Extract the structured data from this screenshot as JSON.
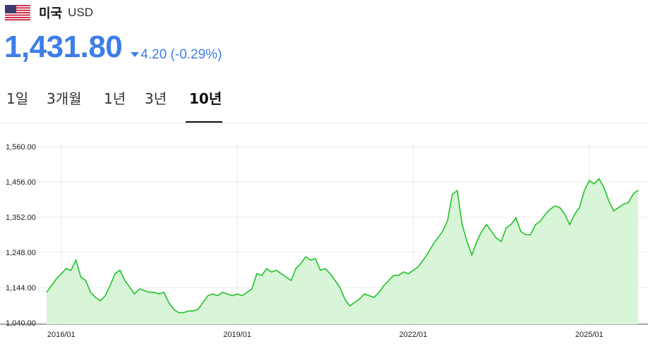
{
  "header": {
    "flag_icon": "us-flag-icon",
    "country": "미국",
    "currency": "USD"
  },
  "quote": {
    "price": "1,431.80",
    "change": "4.20 (-0.29%)",
    "direction_icon": "down-triangle-icon",
    "accent_color": "#3d7ee8"
  },
  "tabs": [
    {
      "label": "1일",
      "active": false
    },
    {
      "label": "3개월",
      "active": false
    },
    {
      "label": "1년",
      "active": false
    },
    {
      "label": "3년",
      "active": false
    },
    {
      "label": "10년",
      "active": true
    }
  ],
  "chart_data": {
    "type": "area",
    "line_color": "#22c22a",
    "fill_color": "#d8f5d8",
    "ylim": [
      1040,
      1560
    ],
    "yticks": [
      "1,560.00",
      "1,456.00",
      "1,352.00",
      "1,248.00",
      "1,144.00",
      "1,040.00"
    ],
    "ytick_values": [
      1560,
      1456,
      1352,
      1248,
      1144,
      1040
    ],
    "xticks": [
      "2016/01",
      "2019/01",
      "2022/01",
      "2025/01"
    ],
    "xlim": [
      "2015-10",
      "2025-11"
    ],
    "grid": true,
    "series": [
      {
        "x": [
          "2015-10",
          "2015-11",
          "2015-12",
          "2016-01",
          "2016-02",
          "2016-03",
          "2016-04",
          "2016-05",
          "2016-06",
          "2016-07",
          "2016-08",
          "2016-09",
          "2016-10",
          "2016-11",
          "2016-12",
          "2017-01",
          "2017-02",
          "2017-03",
          "2017-04",
          "2017-05",
          "2017-06",
          "2017-07",
          "2017-08",
          "2017-09",
          "2017-10",
          "2017-11",
          "2017-12",
          "2018-01",
          "2018-02",
          "2018-03",
          "2018-04",
          "2018-05",
          "2018-06",
          "2018-07",
          "2018-08",
          "2018-09",
          "2018-10",
          "2018-11",
          "2018-12",
          "2019-01",
          "2019-02",
          "2019-03",
          "2019-04",
          "2019-05",
          "2019-06",
          "2019-07",
          "2019-08",
          "2019-09",
          "2019-10",
          "2019-11",
          "2019-12",
          "2020-01",
          "2020-02",
          "2020-03",
          "2020-04",
          "2020-05",
          "2020-06",
          "2020-07",
          "2020-08",
          "2020-09",
          "2020-10",
          "2020-11",
          "2020-12",
          "2021-01",
          "2021-02",
          "2021-03",
          "2021-04",
          "2021-05",
          "2021-06",
          "2021-07",
          "2021-08",
          "2021-09",
          "2021-10",
          "2021-11",
          "2021-12",
          "2022-01",
          "2022-02",
          "2022-03",
          "2022-04",
          "2022-05",
          "2022-06",
          "2022-07",
          "2022-08",
          "2022-09",
          "2022-10",
          "2022-11",
          "2022-12",
          "2023-01",
          "2023-02",
          "2023-03",
          "2023-04",
          "2023-05",
          "2023-06",
          "2023-07",
          "2023-08",
          "2023-09",
          "2023-10",
          "2023-11",
          "2023-12",
          "2024-01",
          "2024-02",
          "2024-03",
          "2024-04",
          "2024-05",
          "2024-06",
          "2024-07",
          "2024-08",
          "2024-09",
          "2024-10",
          "2024-11",
          "2024-12",
          "2025-01",
          "2025-02",
          "2025-03",
          "2025-04",
          "2025-05",
          "2025-06",
          "2025-07",
          "2025-08",
          "2025-09",
          "2025-10",
          "2025-11"
        ],
        "y": [
          1130,
          1150,
          1170,
          1185,
          1200,
          1195,
          1225,
          1175,
          1165,
          1130,
          1115,
          1105,
          1120,
          1150,
          1185,
          1195,
          1165,
          1145,
          1125,
          1140,
          1135,
          1130,
          1130,
          1125,
          1130,
          1100,
          1080,
          1070,
          1070,
          1075,
          1075,
          1080,
          1100,
          1120,
          1125,
          1120,
          1130,
          1125,
          1120,
          1125,
          1120,
          1130,
          1140,
          1185,
          1180,
          1200,
          1190,
          1195,
          1185,
          1175,
          1165,
          1200,
          1215,
          1235,
          1225,
          1230,
          1195,
          1200,
          1185,
          1165,
          1145,
          1110,
          1090,
          1100,
          1110,
          1125,
          1120,
          1115,
          1130,
          1150,
          1165,
          1180,
          1180,
          1190,
          1185,
          1195,
          1205,
          1225,
          1245,
          1270,
          1290,
          1310,
          1340,
          1420,
          1430,
          1330,
          1280,
          1240,
          1280,
          1310,
          1330,
          1310,
          1290,
          1280,
          1320,
          1330,
          1350,
          1310,
          1300,
          1300,
          1330,
          1340,
          1360,
          1375,
          1385,
          1380,
          1360,
          1330,
          1360,
          1380,
          1430,
          1460,
          1450,
          1465,
          1440,
          1400,
          1370,
          1380,
          1390,
          1395,
          1420,
          1431.8
        ]
      }
    ]
  }
}
